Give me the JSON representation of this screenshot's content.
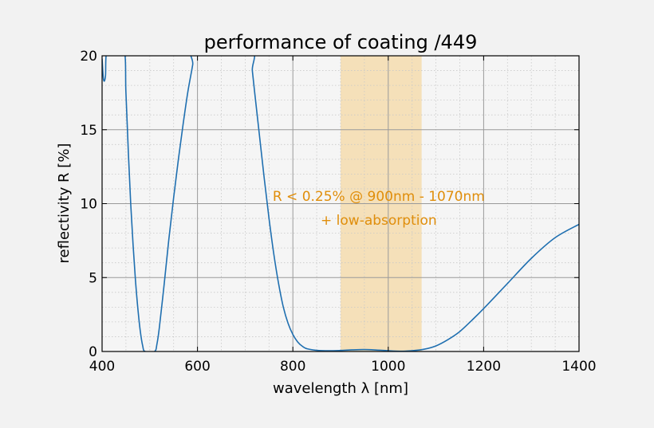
{
  "chart_data": {
    "type": "line",
    "title": "performance of coating /449",
    "xlabel": "wavelength λ [nm]",
    "ylabel": "reflectivity R [%]",
    "xlim": [
      400,
      1400
    ],
    "ylim": [
      0,
      20
    ],
    "x_ticks": [
      400,
      600,
      800,
      1000,
      1200,
      1400
    ],
    "y_ticks": [
      0,
      5,
      10,
      15,
      20
    ],
    "x_minor_step": 50,
    "y_minor_step": 1,
    "grid": true,
    "legend": "none",
    "highlight_band": {
      "x_start": 900,
      "x_end": 1070,
      "color": "#f5deb3"
    },
    "annotation": {
      "line1": "R < 0.25% @ 900nm - 1070nm",
      "line2": "+ low-absorption",
      "x": 980,
      "y1": 10.5,
      "y2": 8.9,
      "color": "#e08e0b"
    },
    "series": [
      {
        "color": "#1f6fb0",
        "points": [
          [
            400,
            19.8
          ],
          [
            403,
            18.4
          ],
          [
            407,
            18.6
          ],
          [
            412,
            20.5
          ],
          [
            445,
            20.5
          ],
          [
            450,
            17.5
          ],
          [
            455,
            13.5
          ],
          [
            460,
            10.0
          ],
          [
            465,
            7.2
          ],
          [
            470,
            4.8
          ],
          [
            475,
            2.9
          ],
          [
            480,
            1.4
          ],
          [
            485,
            0.4
          ],
          [
            490,
            0.0
          ],
          [
            510,
            0.0
          ],
          [
            515,
            0.5
          ],
          [
            520,
            1.6
          ],
          [
            530,
            4.5
          ],
          [
            540,
            7.6
          ],
          [
            550,
            10.4
          ],
          [
            560,
            13.0
          ],
          [
            570,
            15.4
          ],
          [
            580,
            17.6
          ],
          [
            590,
            19.4
          ],
          [
            594,
            20.5
          ],
          [
            710,
            20.5
          ],
          [
            715,
            19.0
          ],
          [
            720,
            17.5
          ],
          [
            730,
            14.6
          ],
          [
            740,
            11.7
          ],
          [
            750,
            9.0
          ],
          [
            760,
            6.6
          ],
          [
            770,
            4.6
          ],
          [
            780,
            3.0
          ],
          [
            790,
            1.9
          ],
          [
            800,
            1.15
          ],
          [
            810,
            0.65
          ],
          [
            820,
            0.35
          ],
          [
            830,
            0.18
          ],
          [
            850,
            0.08
          ],
          [
            875,
            0.05
          ],
          [
            900,
            0.07
          ],
          [
            925,
            0.11
          ],
          [
            950,
            0.13
          ],
          [
            975,
            0.1
          ],
          [
            1000,
            0.05
          ],
          [
            1025,
            0.02
          ],
          [
            1050,
            0.05
          ],
          [
            1075,
            0.15
          ],
          [
            1100,
            0.38
          ],
          [
            1125,
            0.8
          ],
          [
            1150,
            1.35
          ],
          [
            1175,
            2.1
          ],
          [
            1200,
            2.9
          ],
          [
            1250,
            4.6
          ],
          [
            1300,
            6.3
          ],
          [
            1350,
            7.7
          ],
          [
            1400,
            8.6
          ]
        ]
      }
    ]
  }
}
